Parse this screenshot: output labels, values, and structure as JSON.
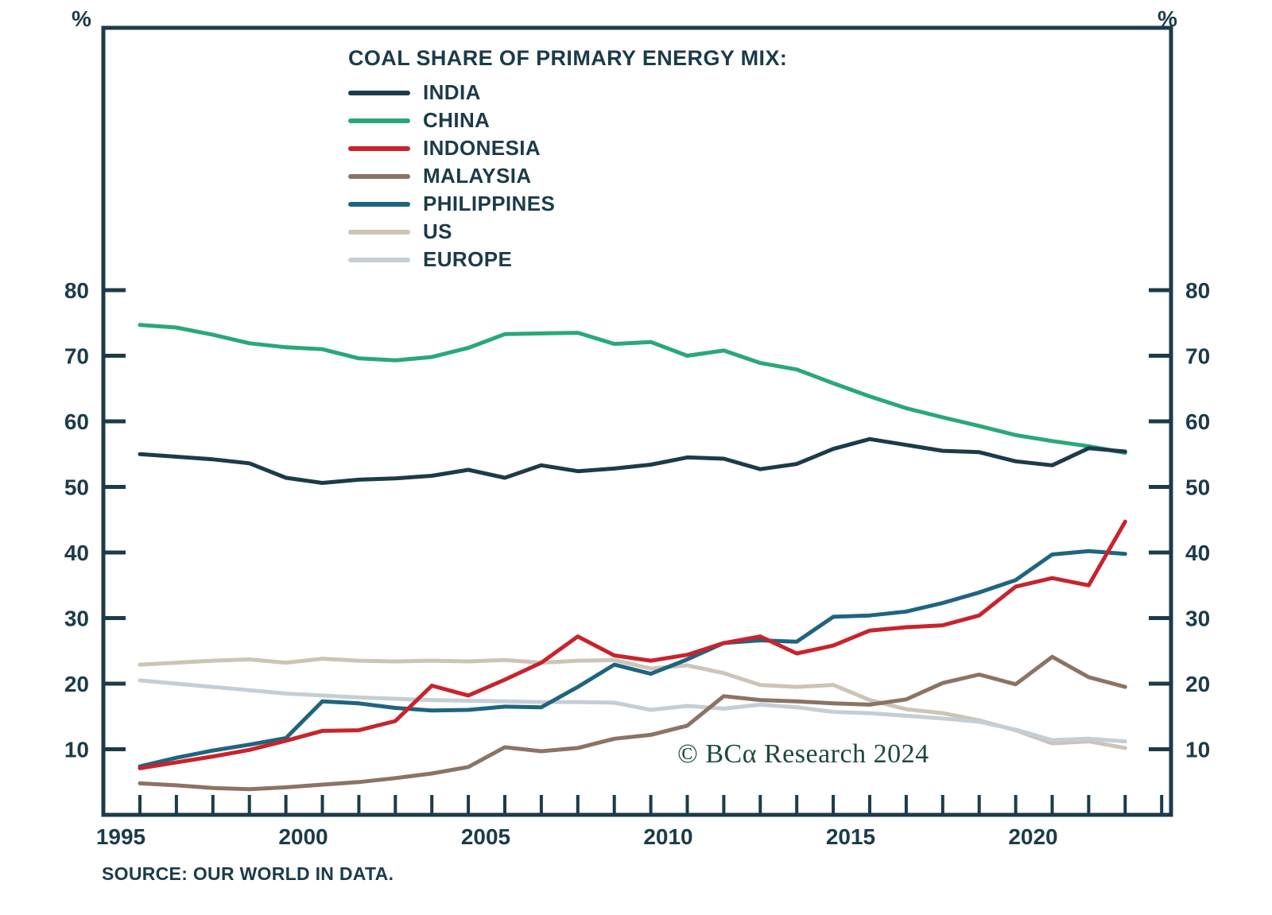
{
  "axes": {
    "y_unit_left": "%",
    "y_unit_right": "%"
  },
  "legend": {
    "title": "COAL SHARE OF PRIMARY ENERGY MIX:",
    "items": [
      {
        "label": "INDIA",
        "color": "#1C3B4A"
      },
      {
        "label": "CHINA",
        "color": "#29A878"
      },
      {
        "label": "INDONESIA",
        "color": "#C8232C"
      },
      {
        "label": "MALAYSIA",
        "color": "#8C7362"
      },
      {
        "label": "PHILIPPINES",
        "color": "#20647F"
      },
      {
        "label": "US",
        "color": "#CCC4B6"
      },
      {
        "label": "EUROPE",
        "color": "#C5CED5"
      }
    ]
  },
  "watermark": {
    "text": "© BCα Research 2024"
  },
  "source": {
    "text": "SOURCE: OUR WORLD IN DATA."
  },
  "chart_data": {
    "type": "line",
    "title": "COAL SHARE OF PRIMARY ENERGY MIX:",
    "unit": "%",
    "grid": false,
    "legend_position": "top-left-inside",
    "ylim": [
      0,
      85
    ],
    "yticks": [
      10,
      20,
      30,
      40,
      50,
      60,
      70,
      80
    ],
    "xtick_labels": [
      "1995",
      "2000",
      "2005",
      "2010",
      "2015",
      "2020"
    ],
    "xtick_label_years": [
      1995,
      2000,
      2005,
      2010,
      2015,
      2020
    ],
    "minor_xtick_years": [
      1995,
      2023
    ],
    "x": [
      1995,
      1996,
      1997,
      1998,
      1999,
      2000,
      2001,
      2002,
      2003,
      2004,
      2005,
      2006,
      2007,
      2008,
      2009,
      2010,
      2011,
      2012,
      2013,
      2014,
      2015,
      2016,
      2017,
      2018,
      2019,
      2020,
      2021,
      2022
    ],
    "series": [
      {
        "name": "US",
        "color": "#CCC4B6",
        "values": [
          22.9,
          23.2,
          23.5,
          23.7,
          23.2,
          23.8,
          23.5,
          23.4,
          23.5,
          23.4,
          23.6,
          23.2,
          23.5,
          23.6,
          22.3,
          22.8,
          21.6,
          19.8,
          19.5,
          19.8,
          17.5,
          16.1,
          15.5,
          14.4,
          12.9,
          10.9,
          11.2,
          10.2
        ]
      },
      {
        "name": "EUROPE",
        "color": "#C5CED5",
        "values": [
          20.5,
          20.0,
          19.5,
          19.0,
          18.5,
          18.2,
          17.9,
          17.7,
          17.5,
          17.4,
          17.3,
          17.2,
          17.2,
          17.1,
          16.0,
          16.6,
          16.2,
          16.8,
          16.4,
          15.7,
          15.5,
          15.1,
          14.7,
          14.2,
          13.0,
          11.4,
          11.6,
          11.2
        ]
      },
      {
        "name": "MALAYSIA",
        "color": "#8C7362",
        "values": [
          4.8,
          4.5,
          4.1,
          3.9,
          4.2,
          4.6,
          5.0,
          5.6,
          6.3,
          7.3,
          10.3,
          9.7,
          10.2,
          11.6,
          12.2,
          13.6,
          18.1,
          17.5,
          17.3,
          17.0,
          16.8,
          17.6,
          20.1,
          21.4,
          19.9,
          24.1,
          21.0,
          19.5
        ]
      },
      {
        "name": "PHILIPPINES",
        "color": "#20647F",
        "values": [
          7.4,
          8.7,
          9.8,
          10.7,
          11.7,
          17.3,
          17.0,
          16.3,
          15.9,
          16.0,
          16.5,
          16.4,
          19.5,
          22.9,
          21.5,
          23.7,
          26.2,
          26.6,
          26.4,
          30.2,
          30.4,
          31.0,
          32.3,
          33.9,
          35.8,
          39.7,
          40.2,
          39.8
        ]
      },
      {
        "name": "INDONESIA",
        "color": "#C8232C",
        "values": [
          7.1,
          8.0,
          8.9,
          9.9,
          11.3,
          12.8,
          12.9,
          14.3,
          19.7,
          18.2,
          20.6,
          23.2,
          27.2,
          24.3,
          23.5,
          24.4,
          26.2,
          27.2,
          24.6,
          25.8,
          28.1,
          28.6,
          28.9,
          30.4,
          34.8,
          36.1,
          35.0,
          44.7
        ]
      },
      {
        "name": "CHINA",
        "color": "#29A878",
        "values": [
          74.7,
          74.3,
          73.2,
          71.9,
          71.3,
          71.0,
          69.6,
          69.3,
          69.8,
          71.2,
          73.3,
          73.4,
          73.5,
          71.8,
          72.1,
          70.0,
          70.8,
          68.9,
          67.9,
          65.8,
          63.8,
          62.0,
          60.6,
          59.3,
          57.9,
          57.0,
          56.2,
          55.2
        ]
      },
      {
        "name": "INDIA",
        "color": "#1C3B4A",
        "values": [
          55.0,
          54.6,
          54.2,
          53.6,
          51.4,
          50.6,
          51.1,
          51.3,
          51.7,
          52.6,
          51.4,
          53.3,
          52.4,
          52.8,
          53.4,
          54.5,
          54.3,
          52.7,
          53.5,
          55.8,
          57.3,
          56.4,
          55.5,
          55.3,
          53.9,
          53.3,
          55.9,
          55.4
        ]
      }
    ]
  }
}
